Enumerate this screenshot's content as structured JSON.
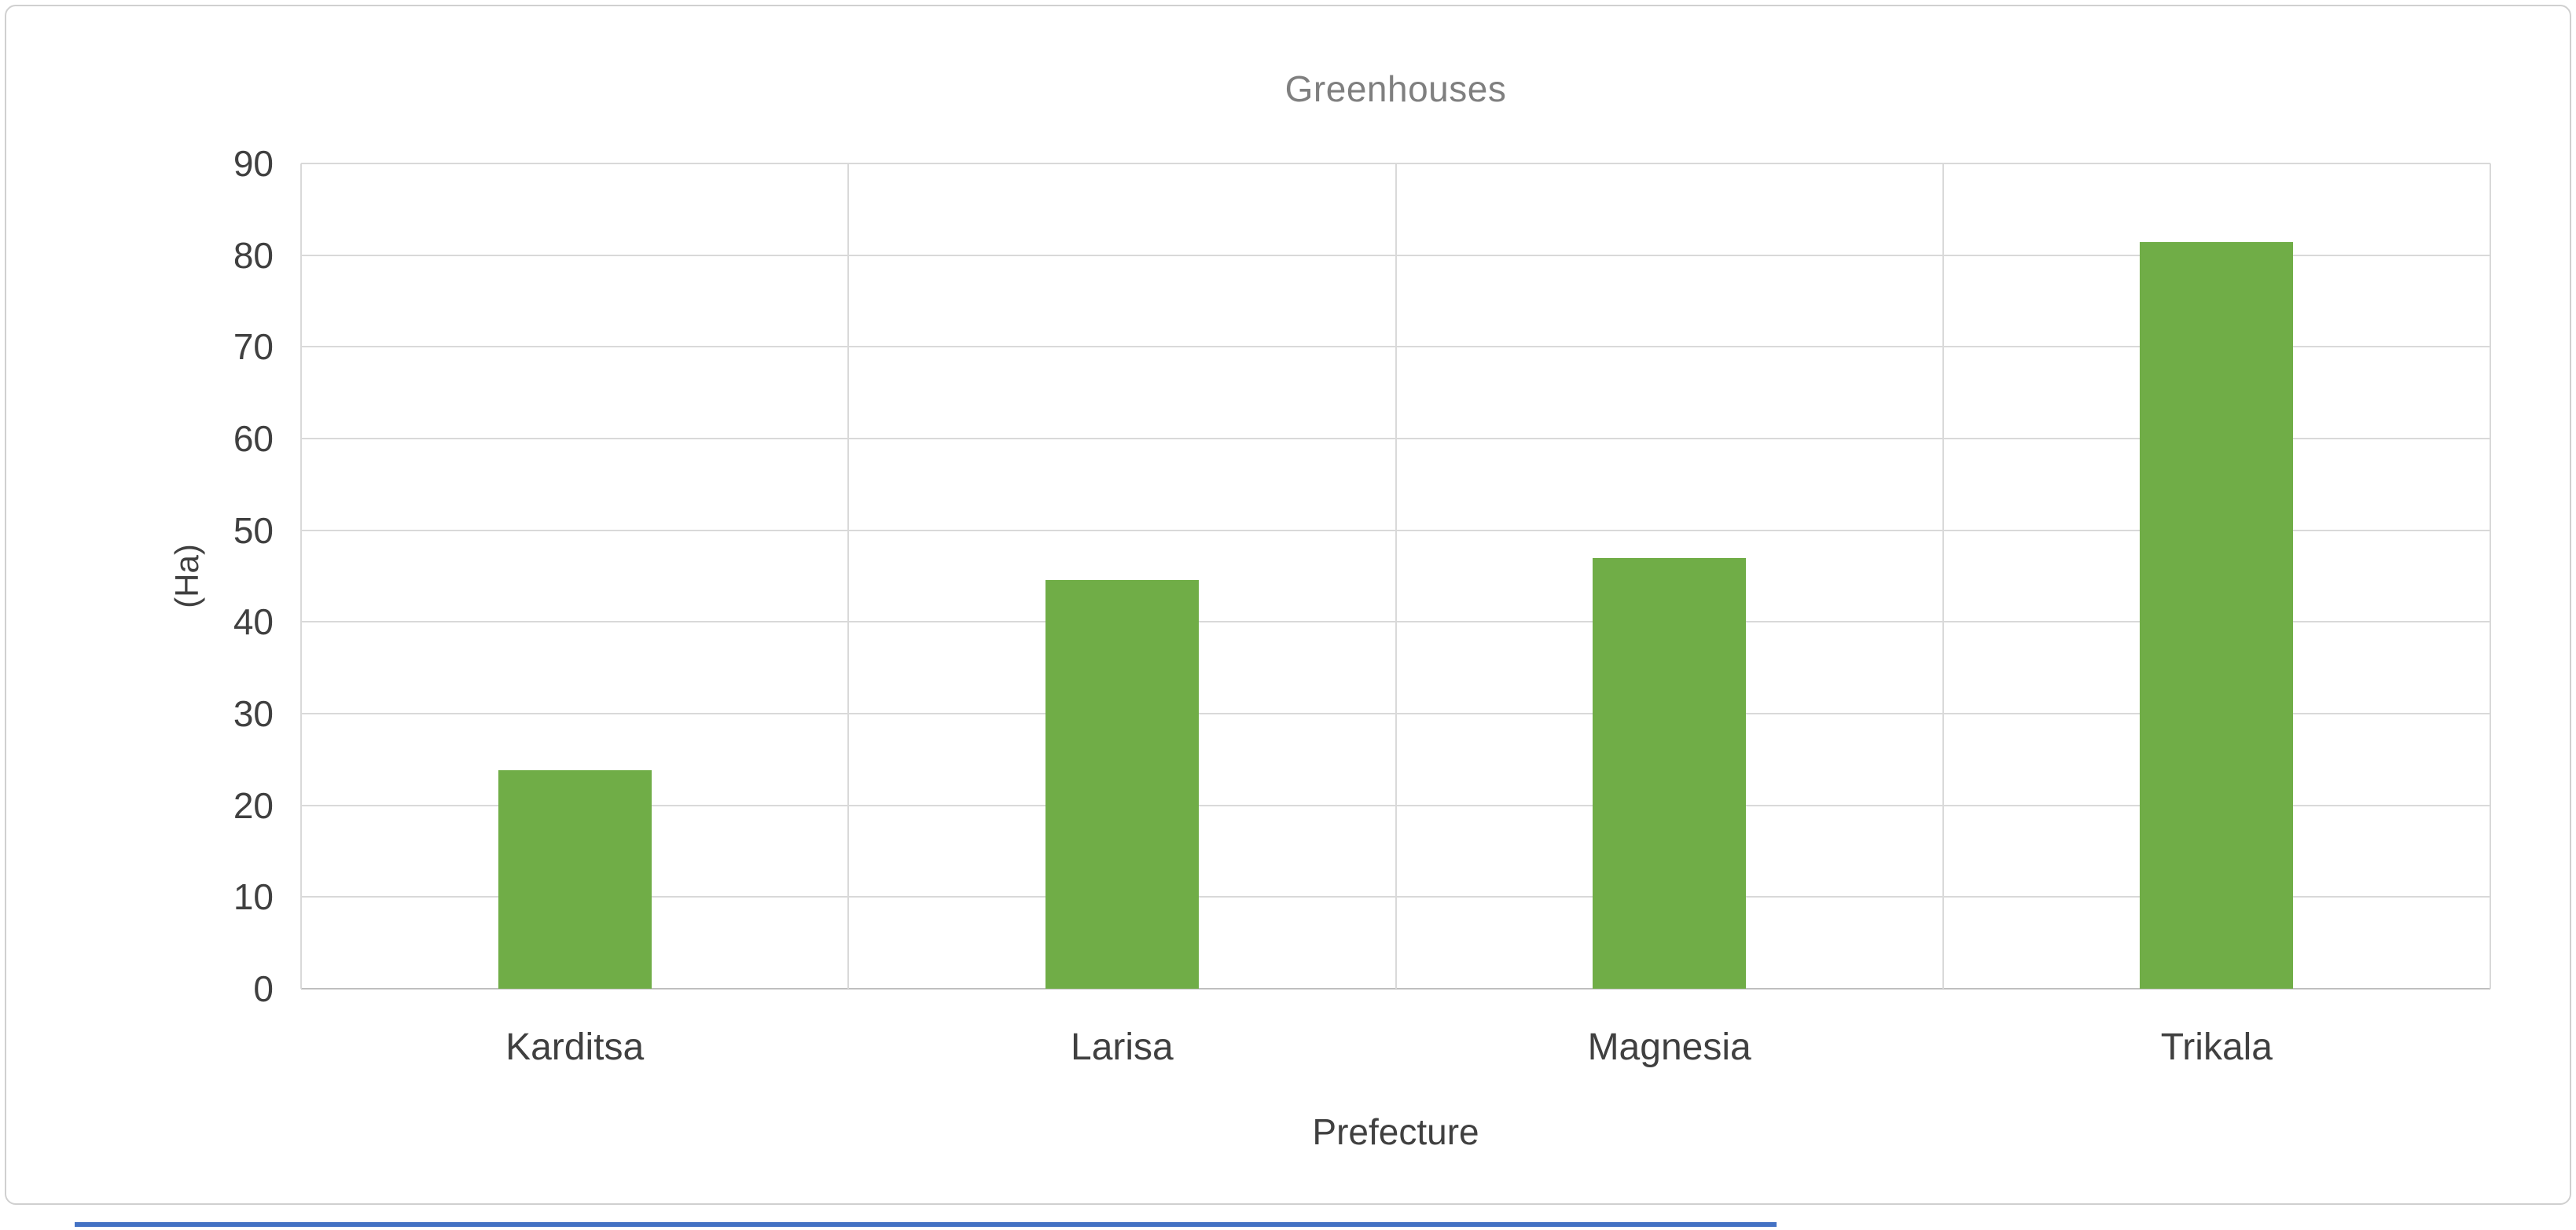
{
  "chart_data": {
    "type": "bar",
    "title": "Greenhouses",
    "xlabel": "Prefecture",
    "ylabel": "(Ha)",
    "categories": [
      "Karditsa",
      "Larisa",
      "Magnesia",
      "Trikala"
    ],
    "values": [
      23.8,
      44.6,
      47,
      81.4
    ],
    "ylim": [
      0,
      90
    ],
    "yticks": [
      0,
      10,
      20,
      30,
      40,
      50,
      60,
      70,
      80,
      90
    ],
    "grid": true,
    "legend_position": "none",
    "bar_color": "#70AD47",
    "gridline_color": "#D9D9D9",
    "axis_line_color": "#BFBFBF",
    "title_color": "#7F7F7F",
    "label_color": "#404040"
  },
  "page": {
    "underline_color": "#4472C4"
  }
}
